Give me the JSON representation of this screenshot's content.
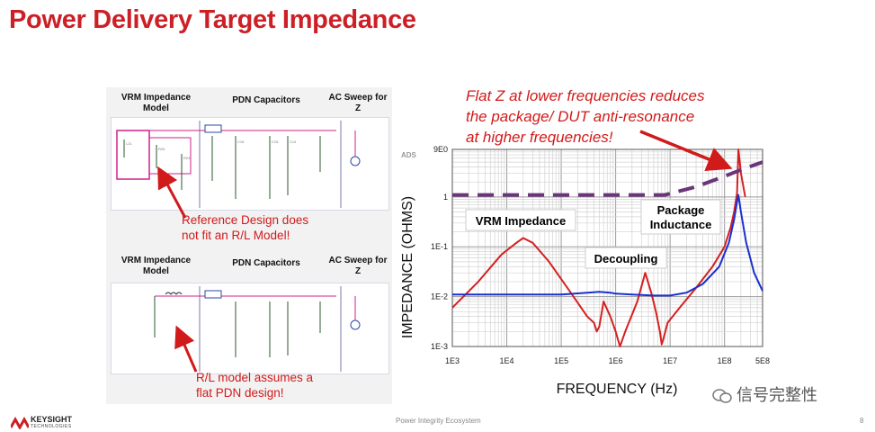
{
  "slide": {
    "title": "Power Delivery Target Impedance",
    "footer_center": "Power Integrity Ecosystem",
    "page_number": "8",
    "logo": {
      "name": "KEYSIGHT",
      "sub": "TECHNOLOGIES"
    },
    "watermark": "信号完整性"
  },
  "schematics": {
    "top": {
      "labels": {
        "vrm": "VRM Impedance Model",
        "pdn": "PDN Capacitors",
        "ac": "AC Sweep for Z"
      },
      "note": [
        "Reference Design does",
        "not fit an R/L Model!"
      ]
    },
    "bottom": {
      "labels": {
        "vrm": "VRM Impedance Model",
        "pdn": "PDN Capacitors",
        "ac": "AC Sweep for Z"
      },
      "note": [
        "R/L model assumes a",
        "flat PDN design!"
      ]
    }
  },
  "callout": [
    "Flat Z at lower frequencies reduces",
    "the package/ DUT anti-resonance",
    "at higher frequencies!"
  ],
  "chart_data": {
    "type": "line",
    "xscale": "log",
    "yscale": "log",
    "xlabel": "FREQUENCY (Hz)",
    "ylabel": "IMPEDANCE (OHMS)",
    "corner_label": "ADS",
    "xlim": [
      1000,
      500000000
    ],
    "ylim": [
      0.001,
      9
    ],
    "xticks": [
      {
        "v": 1000,
        "label": "1E3"
      },
      {
        "v": 10000,
        "label": "1E4"
      },
      {
        "v": 100000,
        "label": "1E5"
      },
      {
        "v": 1000000,
        "label": "1E6"
      },
      {
        "v": 10000000,
        "label": "1E7"
      },
      {
        "v": 100000000,
        "label": "1E8"
      },
      {
        "v": 500000000,
        "label": "5E8"
      }
    ],
    "yticks": [
      {
        "v": 9,
        "label": "9E0"
      },
      {
        "v": 1,
        "label": "1"
      },
      {
        "v": 0.1,
        "label": "1E-1"
      },
      {
        "v": 0.01,
        "label": "1E-2"
      },
      {
        "v": 0.001,
        "label": "1E-3"
      }
    ],
    "grid": true,
    "annotations": [
      "VRM Impedance",
      "Decoupling",
      "Package Inductance"
    ],
    "series": [
      {
        "style": "red",
        "color": "#d42020",
        "x": [
          1000,
          3000,
          8000,
          15000,
          20000,
          30000,
          60000,
          150000,
          300000,
          400000,
          450000,
          500000,
          600000,
          800000,
          1000000,
          1200000,
          1500000,
          2500000,
          3500000,
          4500000,
          5500000,
          6500000,
          7000000,
          7500000,
          9000000,
          15000000,
          30000000,
          60000000,
          100000000,
          130000000,
          150000000,
          170000000,
          180000000,
          200000000,
          240000000
        ],
        "y": [
          0.006,
          0.02,
          0.07,
          0.12,
          0.15,
          0.12,
          0.05,
          0.012,
          0.004,
          0.003,
          0.002,
          0.0025,
          0.008,
          0.004,
          0.002,
          0.001,
          0.002,
          0.008,
          0.03,
          0.012,
          0.005,
          0.002,
          0.0011,
          0.0014,
          0.003,
          0.006,
          0.015,
          0.04,
          0.1,
          0.25,
          0.5,
          1.2,
          9,
          3,
          1
        ]
      },
      {
        "style": "blue",
        "color": "#1a2fd0",
        "x": [
          1000,
          100000,
          300000,
          500000,
          800000,
          1000000,
          2000000,
          5000000,
          10000000,
          20000000,
          40000000,
          80000000,
          120000000,
          150000000,
          170000000,
          180000000,
          200000000,
          250000000,
          350000000,
          500000000
        ],
        "y": [
          0.011,
          0.011,
          0.012,
          0.0125,
          0.012,
          0.0115,
          0.011,
          0.0105,
          0.0105,
          0.012,
          0.018,
          0.04,
          0.12,
          0.35,
          0.8,
          1.1,
          0.5,
          0.12,
          0.03,
          0.013
        ]
      },
      {
        "style": "target",
        "color": "#6b3579",
        "x": [
          1000,
          8000000,
          30000000,
          100000000,
          200000000,
          500000000
        ],
        "y": [
          1.1,
          1.1,
          1.6,
          2.6,
          3.5,
          5.0
        ]
      }
    ]
  }
}
